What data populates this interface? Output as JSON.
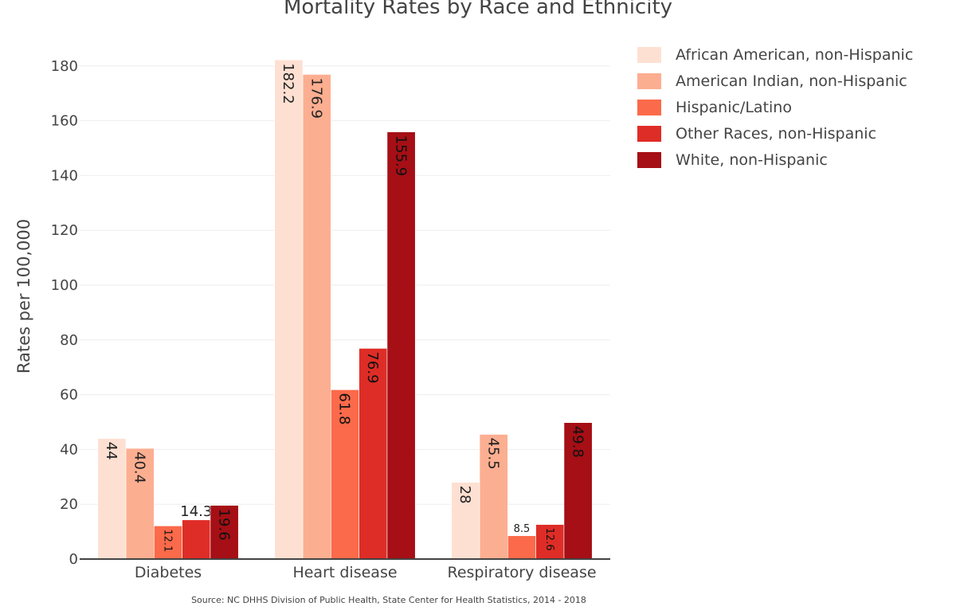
{
  "chart_data": {
    "type": "bar",
    "title": "Mortality Rates by Race and Ethnicity",
    "ylabel": "Rates per 100,000",
    "xlabel": "",
    "source": "Source: NC DHHS Division of Public Health, State Center for Health Statistics, 2014 - 2018",
    "categories": [
      "Diabetes",
      "Heart disease",
      "Respiratory disease"
    ],
    "ylim": [
      0,
      190
    ],
    "yticks": [
      0,
      20,
      40,
      60,
      80,
      100,
      120,
      140,
      160,
      180
    ],
    "grid": true,
    "legend_position": "top-right",
    "series": [
      {
        "name": "African American, non-Hispanic",
        "color": "#fee0d2",
        "values": [
          44,
          182.2,
          28
        ]
      },
      {
        "name": "American Indian, non-Hispanic",
        "color": "#fcae91",
        "values": [
          40.4,
          176.9,
          45.5
        ]
      },
      {
        "name": "Hispanic/Latino",
        "color": "#fb6a4a",
        "values": [
          12.1,
          61.8,
          8.5
        ]
      },
      {
        "name": "Other Races, non-Hispanic",
        "color": "#de2d26",
        "values": [
          14.3,
          76.9,
          12.6
        ]
      },
      {
        "name": "White, non-Hispanic",
        "color": "#a50f15",
        "values": [
          19.6,
          155.9,
          49.8
        ]
      }
    ]
  }
}
